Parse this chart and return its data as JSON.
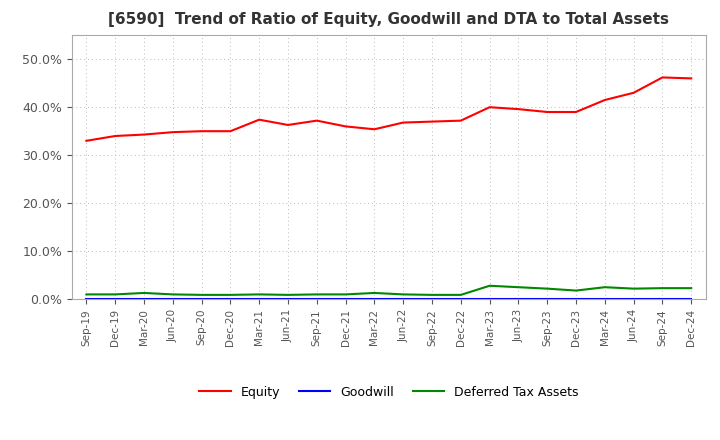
{
  "title": "[6590]  Trend of Ratio of Equity, Goodwill and DTA to Total Assets",
  "x_labels": [
    "Sep-19",
    "Dec-19",
    "Mar-20",
    "Jun-20",
    "Sep-20",
    "Dec-20",
    "Mar-21",
    "Jun-21",
    "Sep-21",
    "Dec-21",
    "Mar-22",
    "Jun-22",
    "Sep-22",
    "Dec-22",
    "Mar-23",
    "Jun-23",
    "Sep-23",
    "Dec-23",
    "Mar-24",
    "Jun-24",
    "Sep-24",
    "Dec-24"
  ],
  "equity": [
    0.33,
    0.34,
    0.343,
    0.348,
    0.35,
    0.35,
    0.374,
    0.363,
    0.372,
    0.36,
    0.354,
    0.368,
    0.37,
    0.372,
    0.4,
    0.396,
    0.39,
    0.39,
    0.415,
    0.43,
    0.462,
    0.46
  ],
  "goodwill": [
    0.0,
    0.0,
    0.0,
    0.0,
    0.0,
    0.0,
    0.0,
    0.0,
    0.0,
    0.0,
    0.0,
    0.0,
    0.0,
    0.0,
    0.0,
    0.0,
    0.0,
    0.0,
    0.0,
    0.0,
    0.0,
    0.0
  ],
  "dta": [
    0.01,
    0.01,
    0.013,
    0.01,
    0.009,
    0.009,
    0.01,
    0.009,
    0.01,
    0.01,
    0.013,
    0.01,
    0.009,
    0.009,
    0.028,
    0.025,
    0.022,
    0.018,
    0.025,
    0.022,
    0.023,
    0.023
  ],
  "equity_color": "#FF0000",
  "goodwill_color": "#0000FF",
  "dta_color": "#008800",
  "background_color": "#FFFFFF",
  "plot_bg_color": "#FFFFFF",
  "grid_color": "#BBBBBB",
  "ylim": [
    0.0,
    0.55
  ],
  "yticks": [
    0.0,
    0.1,
    0.2,
    0.3,
    0.4,
    0.5
  ],
  "title_fontsize": 11,
  "title_color": "#333333",
  "tick_color": "#555555",
  "legend_labels": [
    "Equity",
    "Goodwill",
    "Deferred Tax Assets"
  ]
}
